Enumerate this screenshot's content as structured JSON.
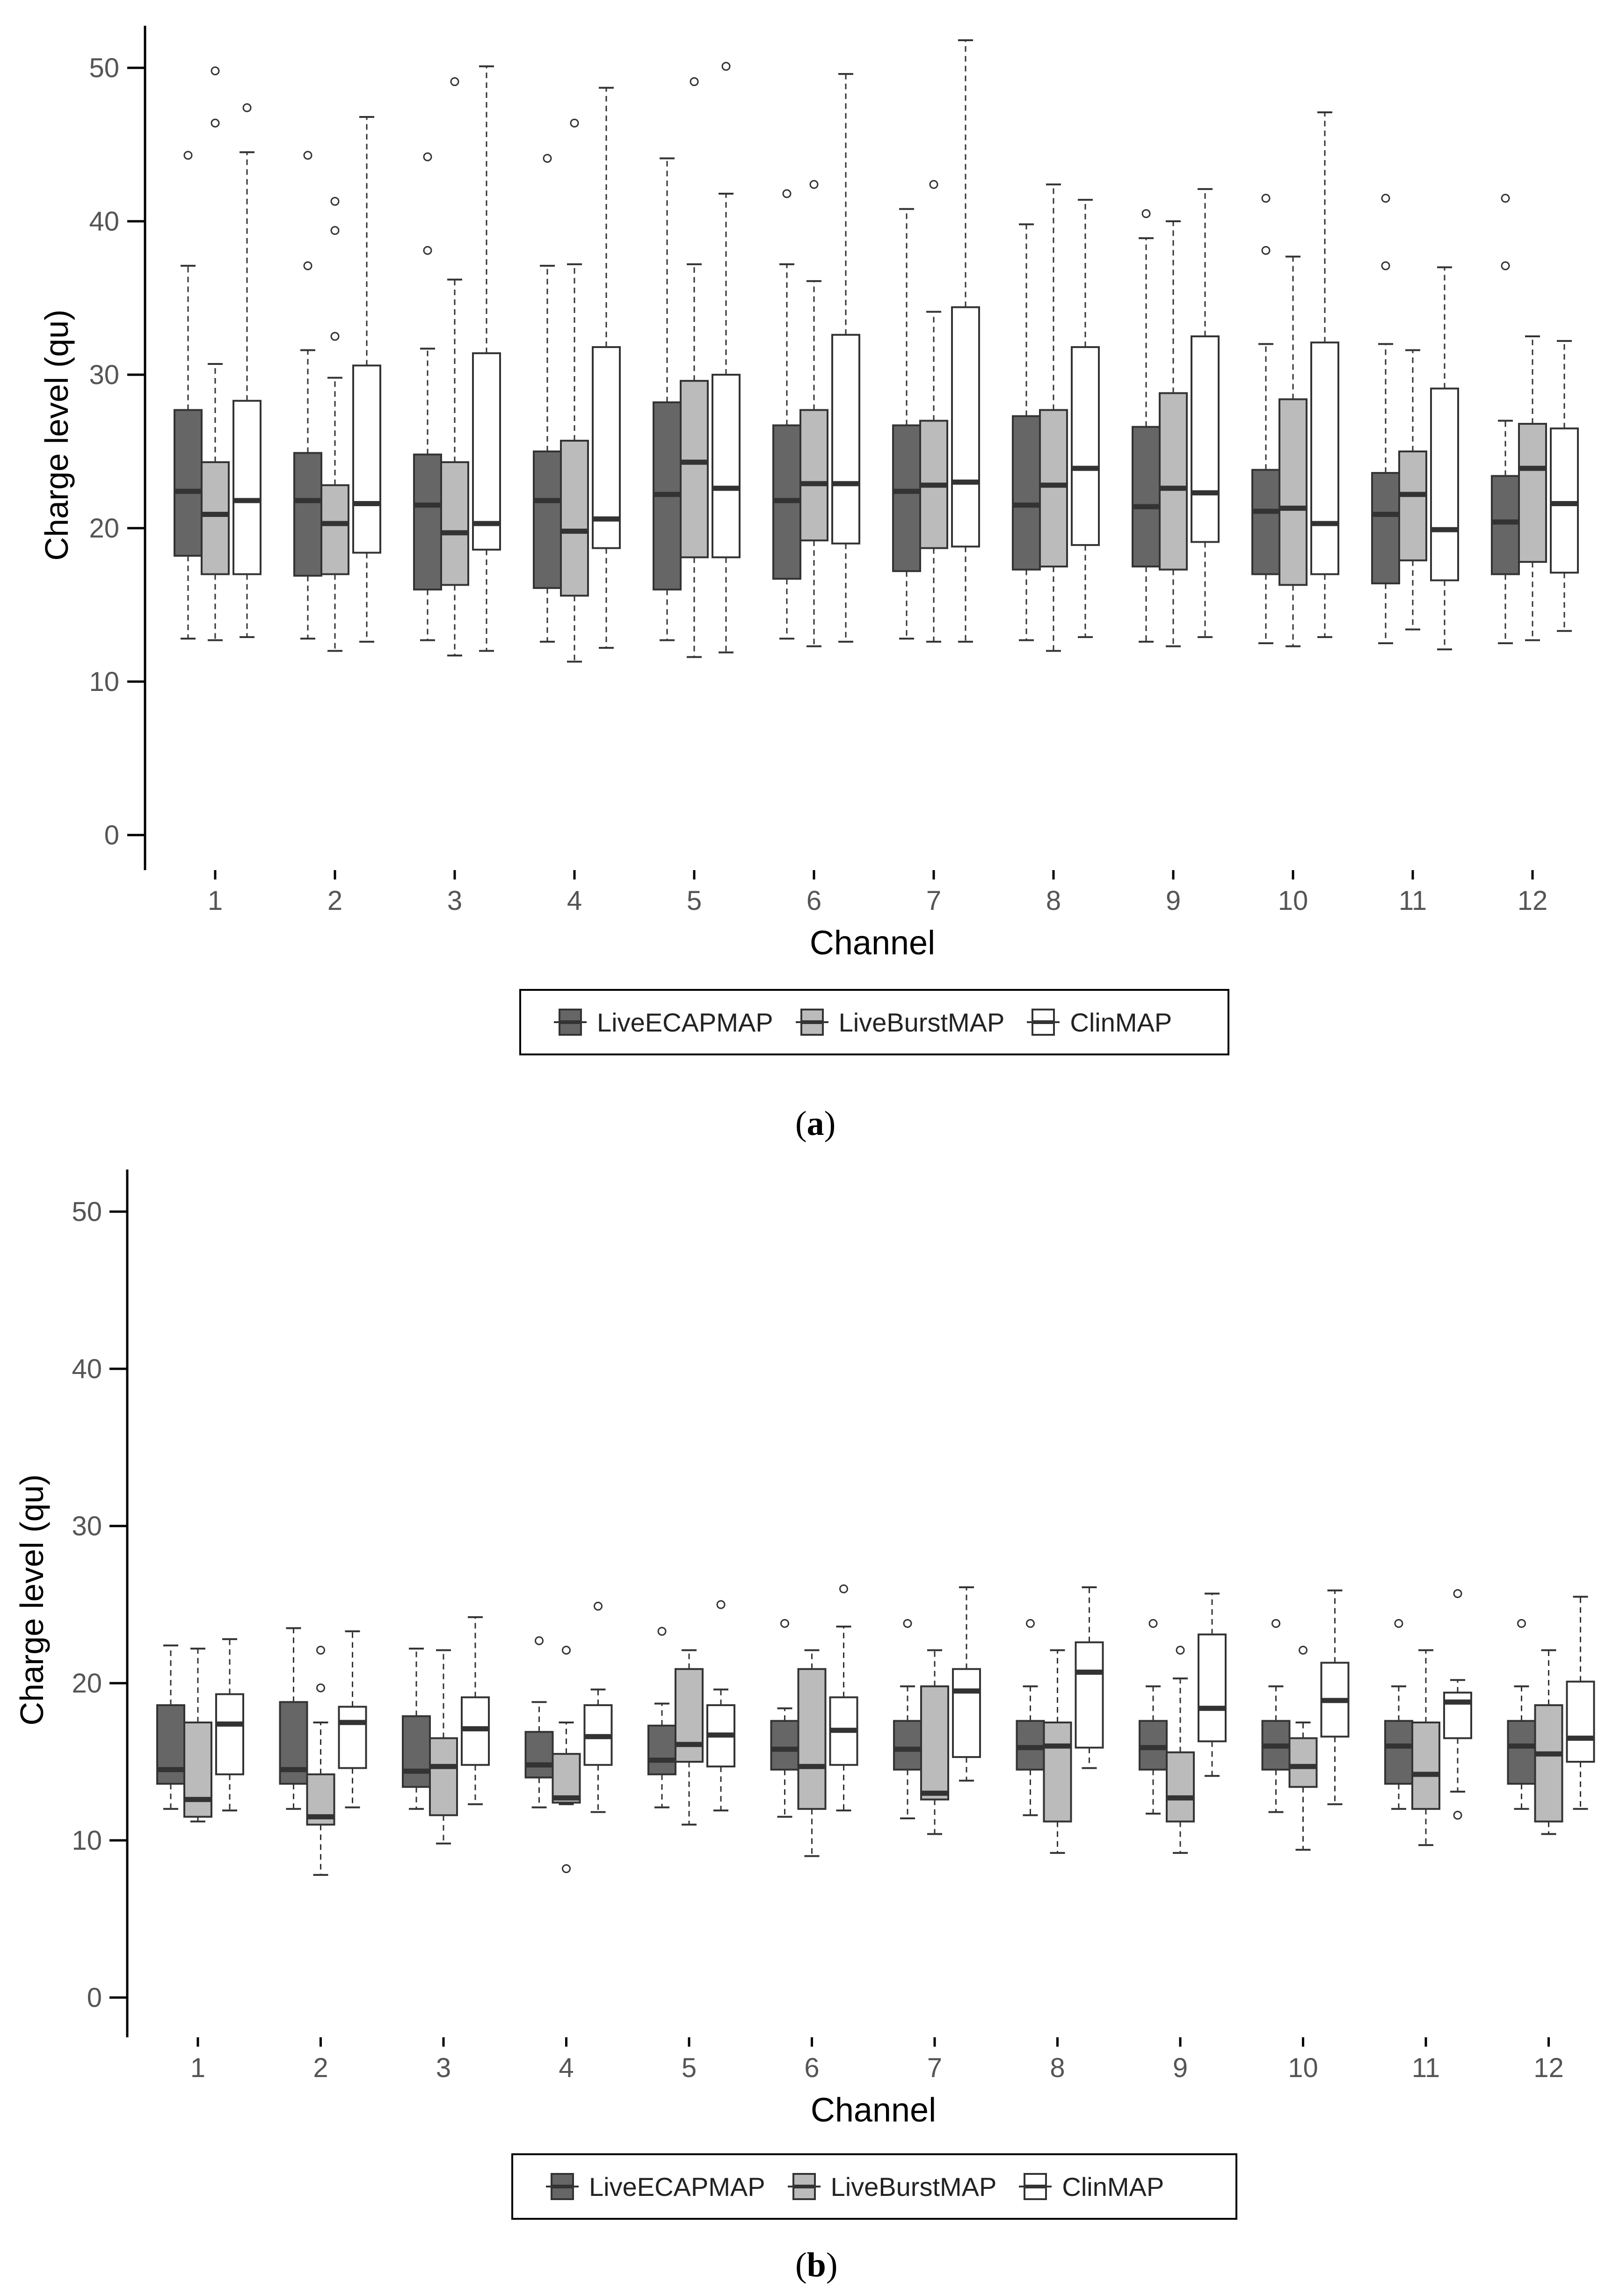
{
  "chart_data": [
    {
      "panel": "(a)",
      "type": "boxplot",
      "xlabel": "Channel",
      "ylabel": "Charge level (qu)",
      "ylim": [
        0,
        50
      ],
      "yticks": [
        0,
        10,
        20,
        30,
        40,
        50
      ],
      "categories": [
        "1",
        "2",
        "3",
        "4",
        "5",
        "6",
        "7",
        "8",
        "9",
        "10",
        "11",
        "12"
      ],
      "series": [
        {
          "name": "LiveECAPMAP",
          "color": "#666666",
          "boxes": [
            {
              "min": 12.8,
              "q1": 18.2,
              "median": 22.4,
              "q3": 27.7,
              "max": 37.1,
              "outliers": [
                44.3
              ]
            },
            {
              "min": 12.8,
              "q1": 16.9,
              "median": 21.8,
              "q3": 24.9,
              "max": 31.6,
              "outliers": [
                44.3,
                37.1
              ]
            },
            {
              "min": 12.7,
              "q1": 16.0,
              "median": 21.5,
              "q3": 24.8,
              "max": 31.7,
              "outliers": [
                44.2,
                38.1
              ]
            },
            {
              "min": 12.6,
              "q1": 16.1,
              "median": 21.8,
              "q3": 25.0,
              "max": 37.1,
              "outliers": [
                44.1
              ]
            },
            {
              "min": 12.7,
              "q1": 16.0,
              "median": 22.2,
              "q3": 28.2,
              "max": 44.1,
              "outliers": []
            },
            {
              "min": 12.8,
              "q1": 16.7,
              "median": 21.8,
              "q3": 26.7,
              "max": 37.2,
              "outliers": [
                41.8
              ]
            },
            {
              "min": 12.8,
              "q1": 17.2,
              "median": 22.4,
              "q3": 26.7,
              "max": 40.8,
              "outliers": []
            },
            {
              "min": 12.7,
              "q1": 17.3,
              "median": 21.5,
              "q3": 27.3,
              "max": 39.8,
              "outliers": []
            },
            {
              "min": 12.6,
              "q1": 17.5,
              "median": 21.4,
              "q3": 26.6,
              "max": 38.9,
              "outliers": [
                40.5
              ]
            },
            {
              "min": 12.5,
              "q1": 17.0,
              "median": 21.1,
              "q3": 23.8,
              "max": 32.0,
              "outliers": [
                41.5,
                38.1
              ]
            },
            {
              "min": 12.5,
              "q1": 16.4,
              "median": 20.9,
              "q3": 23.6,
              "max": 32.0,
              "outliers": [
                41.5,
                37.1
              ]
            },
            {
              "min": 12.5,
              "q1": 17.0,
              "median": 20.4,
              "q3": 23.4,
              "max": 27.0,
              "outliers": [
                41.5,
                37.1
              ]
            }
          ]
        },
        {
          "name": "LiveBurstMAP",
          "color": "#bbbbbb",
          "boxes": [
            {
              "min": 12.7,
              "q1": 17.0,
              "median": 20.9,
              "q3": 24.3,
              "max": 30.7,
              "outliers": [
                49.8,
                46.4
              ]
            },
            {
              "min": 12.0,
              "q1": 17.0,
              "median": 20.3,
              "q3": 22.8,
              "max": 29.8,
              "outliers": [
                41.3,
                39.4,
                32.5
              ]
            },
            {
              "min": 11.7,
              "q1": 16.3,
              "median": 19.7,
              "q3": 24.3,
              "max": 36.2,
              "outliers": [
                49.1
              ]
            },
            {
              "min": 11.3,
              "q1": 15.6,
              "median": 19.8,
              "q3": 25.7,
              "max": 37.2,
              "outliers": [
                46.4
              ]
            },
            {
              "min": 11.6,
              "q1": 18.1,
              "median": 24.3,
              "q3": 29.6,
              "max": 37.2,
              "outliers": [
                49.1
              ]
            },
            {
              "min": 12.3,
              "q1": 19.2,
              "median": 22.9,
              "q3": 27.7,
              "max": 36.1,
              "outliers": [
                42.4
              ]
            },
            {
              "min": 12.6,
              "q1": 18.7,
              "median": 22.8,
              "q3": 27.0,
              "max": 34.1,
              "outliers": [
                42.4
              ]
            },
            {
              "min": 12.0,
              "q1": 17.5,
              "median": 22.8,
              "q3": 27.7,
              "max": 42.4,
              "outliers": []
            },
            {
              "min": 12.3,
              "q1": 17.3,
              "median": 22.6,
              "q3": 28.8,
              "max": 40.0,
              "outliers": []
            },
            {
              "min": 12.3,
              "q1": 16.3,
              "median": 21.3,
              "q3": 28.4,
              "max": 37.7,
              "outliers": []
            },
            {
              "min": 13.4,
              "q1": 17.9,
              "median": 22.2,
              "q3": 25.0,
              "max": 31.6,
              "outliers": []
            },
            {
              "min": 12.7,
              "q1": 17.8,
              "median": 23.9,
              "q3": 26.8,
              "max": 32.5,
              "outliers": []
            }
          ]
        },
        {
          "name": "ClinMAP",
          "color": "#ffffff",
          "boxes": [
            {
              "min": 12.9,
              "q1": 17.0,
              "median": 21.8,
              "q3": 28.3,
              "max": 44.5,
              "outliers": [
                47.4
              ]
            },
            {
              "min": 12.6,
              "q1": 18.4,
              "median": 21.6,
              "q3": 30.6,
              "max": 46.8,
              "outliers": []
            },
            {
              "min": 12.0,
              "q1": 18.6,
              "median": 20.3,
              "q3": 31.4,
              "max": 50.1,
              "outliers": []
            },
            {
              "min": 12.2,
              "q1": 18.7,
              "median": 20.6,
              "q3": 31.8,
              "max": 48.7,
              "outliers": []
            },
            {
              "min": 11.9,
              "q1": 18.1,
              "median": 22.6,
              "q3": 30.0,
              "max": 41.8,
              "outliers": [
                50.1
              ]
            },
            {
              "min": 12.6,
              "q1": 19.0,
              "median": 22.9,
              "q3": 32.6,
              "max": 49.6,
              "outliers": []
            },
            {
              "min": 12.6,
              "q1": 18.8,
              "median": 23.0,
              "q3": 34.4,
              "max": 51.8,
              "outliers": []
            },
            {
              "min": 12.9,
              "q1": 18.9,
              "median": 23.9,
              "q3": 31.8,
              "max": 41.4,
              "outliers": []
            },
            {
              "min": 12.9,
              "q1": 19.1,
              "median": 22.3,
              "q3": 32.5,
              "max": 42.1,
              "outliers": []
            },
            {
              "min": 12.9,
              "q1": 17.0,
              "median": 20.3,
              "q3": 32.1,
              "max": 47.1,
              "outliers": []
            },
            {
              "min": 12.1,
              "q1": 16.6,
              "median": 19.9,
              "q3": 29.1,
              "max": 37.0,
              "outliers": []
            },
            {
              "min": 13.3,
              "q1": 17.1,
              "median": 21.6,
              "q3": 26.5,
              "max": 32.2,
              "outliers": []
            }
          ]
        }
      ]
    },
    {
      "panel": "(b)",
      "type": "boxplot",
      "xlabel": "Channel",
      "ylabel": "Charge level (qu)",
      "ylim": [
        0,
        50
      ],
      "yticks": [
        0,
        10,
        20,
        30,
        40,
        50
      ],
      "categories": [
        "1",
        "2",
        "3",
        "4",
        "5",
        "6",
        "7",
        "8",
        "9",
        "10",
        "11",
        "12"
      ],
      "series": [
        {
          "name": "LiveECAPMAP",
          "color": "#666666",
          "boxes": [
            {
              "min": 12.0,
              "q1": 13.6,
              "median": 14.5,
              "q3": 18.6,
              "max": 22.4,
              "outliers": []
            },
            {
              "min": 12.0,
              "q1": 13.6,
              "median": 14.5,
              "q3": 18.8,
              "max": 23.5,
              "outliers": []
            },
            {
              "min": 12.0,
              "q1": 13.4,
              "median": 14.4,
              "q3": 17.9,
              "max": 22.2,
              "outliers": []
            },
            {
              "min": 12.1,
              "q1": 14.0,
              "median": 14.8,
              "q3": 16.9,
              "max": 18.8,
              "outliers": [
                22.7
              ]
            },
            {
              "min": 12.1,
              "q1": 14.2,
              "median": 15.1,
              "q3": 17.3,
              "max": 18.7,
              "outliers": [
                23.3
              ]
            },
            {
              "min": 11.5,
              "q1": 14.5,
              "median": 15.8,
              "q3": 17.6,
              "max": 18.4,
              "outliers": [
                23.8
              ]
            },
            {
              "min": 11.4,
              "q1": 14.5,
              "median": 15.8,
              "q3": 17.6,
              "max": 19.8,
              "outliers": [
                23.8
              ]
            },
            {
              "min": 11.6,
              "q1": 14.5,
              "median": 15.9,
              "q3": 17.6,
              "max": 19.8,
              "outliers": [
                23.8
              ]
            },
            {
              "min": 11.7,
              "q1": 14.5,
              "median": 15.9,
              "q3": 17.6,
              "max": 19.8,
              "outliers": [
                23.8
              ]
            },
            {
              "min": 11.8,
              "q1": 14.5,
              "median": 16.0,
              "q3": 17.6,
              "max": 19.8,
              "outliers": [
                23.8
              ]
            },
            {
              "min": 12.0,
              "q1": 13.6,
              "median": 16.0,
              "q3": 17.6,
              "max": 19.8,
              "outliers": [
                23.8
              ]
            },
            {
              "min": 12.0,
              "q1": 13.6,
              "median": 16.0,
              "q3": 17.6,
              "max": 19.8,
              "outliers": [
                23.8
              ]
            }
          ]
        },
        {
          "name": "LiveBurstMAP",
          "color": "#bbbbbb",
          "boxes": [
            {
              "min": 11.2,
              "q1": 11.5,
              "median": 12.6,
              "q3": 17.5,
              "max": 22.2,
              "outliers": []
            },
            {
              "min": 7.8,
              "q1": 11.0,
              "median": 11.5,
              "q3": 14.2,
              "max": 17.5,
              "outliers": [
                22.1,
                19.7
              ]
            },
            {
              "min": 9.8,
              "q1": 11.6,
              "median": 14.7,
              "q3": 16.5,
              "max": 22.1,
              "outliers": []
            },
            {
              "min": 12.3,
              "q1": 12.4,
              "median": 12.7,
              "q3": 15.5,
              "max": 17.5,
              "outliers": [
                22.1,
                8.2
              ]
            },
            {
              "min": 11.0,
              "q1": 15.0,
              "median": 16.1,
              "q3": 20.9,
              "max": 22.1,
              "outliers": []
            },
            {
              "min": 9.0,
              "q1": 12.0,
              "median": 14.7,
              "q3": 20.9,
              "max": 22.1,
              "outliers": []
            },
            {
              "min": 10.4,
              "q1": 12.6,
              "median": 13.0,
              "q3": 19.8,
              "max": 22.1,
              "outliers": []
            },
            {
              "min": 9.2,
              "q1": 11.2,
              "median": 16.0,
              "q3": 17.5,
              "max": 22.1,
              "outliers": []
            },
            {
              "min": 9.2,
              "q1": 11.2,
              "median": 12.7,
              "q3": 15.6,
              "max": 20.3,
              "outliers": [
                22.1
              ]
            },
            {
              "min": 9.4,
              "q1": 13.4,
              "median": 14.7,
              "q3": 16.5,
              "max": 17.5,
              "outliers": [
                22.1
              ]
            },
            {
              "min": 9.7,
              "q1": 12.0,
              "median": 14.2,
              "q3": 17.5,
              "max": 22.1,
              "outliers": []
            },
            {
              "min": 10.4,
              "q1": 11.2,
              "median": 15.5,
              "q3": 18.6,
              "max": 22.1,
              "outliers": []
            }
          ]
        },
        {
          "name": "ClinMAP",
          "color": "#ffffff",
          "boxes": [
            {
              "min": 11.9,
              "q1": 14.2,
              "median": 17.4,
              "q3": 19.3,
              "max": 22.8,
              "outliers": []
            },
            {
              "min": 12.1,
              "q1": 14.6,
              "median": 17.5,
              "q3": 18.5,
              "max": 23.3,
              "outliers": []
            },
            {
              "min": 12.3,
              "q1": 14.8,
              "median": 17.1,
              "q3": 19.1,
              "max": 24.2,
              "outliers": []
            },
            {
              "min": 11.8,
              "q1": 14.8,
              "median": 16.6,
              "q3": 18.6,
              "max": 19.6,
              "outliers": [
                24.9
              ]
            },
            {
              "min": 11.9,
              "q1": 14.7,
              "median": 16.7,
              "q3": 18.6,
              "max": 19.6,
              "outliers": [
                25.0
              ]
            },
            {
              "min": 11.9,
              "q1": 14.8,
              "median": 17.0,
              "q3": 19.1,
              "max": 23.6,
              "outliers": [
                26.0
              ]
            },
            {
              "min": 13.8,
              "q1": 15.3,
              "median": 19.5,
              "q3": 20.9,
              "max": 26.1,
              "outliers": []
            },
            {
              "min": 14.6,
              "q1": 15.9,
              "median": 20.7,
              "q3": 22.6,
              "max": 26.1,
              "outliers": []
            },
            {
              "min": 14.1,
              "q1": 16.3,
              "median": 18.4,
              "q3": 23.1,
              "max": 25.7,
              "outliers": []
            },
            {
              "min": 12.3,
              "q1": 16.6,
              "median": 18.9,
              "q3": 21.3,
              "max": 25.9,
              "outliers": []
            },
            {
              "min": 13.1,
              "q1": 16.5,
              "median": 18.8,
              "q3": 19.4,
              "max": 20.2,
              "outliers": [
                25.7,
                11.6
              ]
            },
            {
              "min": 12.0,
              "q1": 15.0,
              "median": 16.5,
              "q3": 20.1,
              "max": 25.5,
              "outliers": []
            }
          ]
        }
      ]
    }
  ],
  "legend": {
    "items": [
      {
        "label": "LiveECAPMAP",
        "color": "#666666"
      },
      {
        "label": "LiveBurstMAP",
        "color": "#bbbbbb"
      },
      {
        "label": "ClinMAP",
        "color": "#ffffff"
      }
    ]
  },
  "panel_labels": {
    "a": "a",
    "b": "b"
  }
}
